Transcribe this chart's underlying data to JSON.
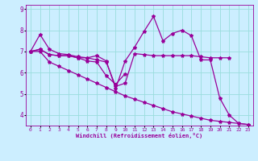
{
  "xlabel": "Windchill (Refroidissement éolien,°C)",
  "background_color": "#cceeff",
  "grid_color": "#99dddd",
  "line_color": "#990099",
  "ylim": [
    3.5,
    9.2
  ],
  "xlim": [
    -0.5,
    23.5
  ],
  "yticks": [
    4,
    5,
    6,
    7,
    8,
    9
  ],
  "xticks": [
    0,
    1,
    2,
    3,
    4,
    5,
    6,
    7,
    8,
    9,
    10,
    11,
    12,
    13,
    14,
    15,
    16,
    17,
    18,
    19,
    20,
    21,
    22,
    23
  ],
  "curves": [
    {
      "x": [
        0,
        1,
        2,
        3,
        4,
        5,
        6,
        7,
        8,
        9,
        10,
        11,
        12,
        13,
        14,
        15,
        16,
        17,
        18,
        19,
        20,
        21,
        22,
        23
      ],
      "y": [
        7.0,
        7.8,
        7.1,
        6.9,
        6.85,
        6.75,
        6.7,
        6.8,
        6.55,
        5.25,
        6.55,
        7.2,
        7.95,
        8.65,
        7.5,
        7.85,
        8.0,
        7.75,
        6.6,
        6.6,
        4.8,
        4.0,
        3.6,
        3.55
      ]
    },
    {
      "x": [
        0,
        1,
        2,
        3,
        4,
        5,
        6,
        7,
        8,
        9,
        10,
        11,
        12,
        13,
        14,
        15,
        16,
        17,
        18,
        19,
        20,
        21
      ],
      "y": [
        7.0,
        7.1,
        6.85,
        6.8,
        6.8,
        6.7,
        6.7,
        6.6,
        6.5,
        5.35,
        5.5,
        6.9,
        6.85,
        6.8,
        6.8,
        6.8,
        6.8,
        6.8,
        6.75,
        6.7,
        6.7,
        6.7
      ]
    },
    {
      "x": [
        0,
        1,
        2,
        3,
        4,
        5,
        6,
        7,
        8,
        9,
        10
      ],
      "y": [
        7.0,
        7.1,
        6.85,
        6.8,
        6.8,
        6.7,
        6.55,
        6.5,
        5.85,
        5.45,
        5.95
      ]
    },
    {
      "x": [
        0,
        1,
        2,
        3,
        4,
        5,
        6,
        7,
        8,
        9,
        10,
        11,
        12,
        13,
        14,
        15,
        16,
        17,
        18,
        19,
        20,
        21,
        22,
        23
      ],
      "y": [
        7.0,
        7.0,
        6.5,
        6.3,
        6.1,
        5.9,
        5.7,
        5.5,
        5.3,
        5.1,
        4.9,
        4.75,
        4.6,
        4.45,
        4.3,
        4.15,
        4.05,
        3.95,
        3.85,
        3.75,
        3.7,
        3.65,
        3.6,
        3.55
      ]
    }
  ]
}
